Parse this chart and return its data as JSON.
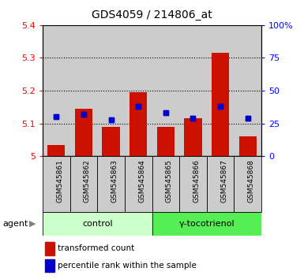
{
  "title": "GDS4059 / 214806_at",
  "samples": [
    "GSM545861",
    "GSM545862",
    "GSM545863",
    "GSM545864",
    "GSM545865",
    "GSM545866",
    "GSM545867",
    "GSM545868"
  ],
  "red_values": [
    5.035,
    5.145,
    5.09,
    5.195,
    5.09,
    5.115,
    5.315,
    5.06
  ],
  "blue_percentiles": [
    30,
    32,
    28,
    38,
    33,
    29,
    38,
    29
  ],
  "red_base": 5.0,
  "ylim_left": [
    5.0,
    5.4
  ],
  "ylim_right": [
    0,
    100
  ],
  "yticks_left": [
    5.0,
    5.1,
    5.2,
    5.3,
    5.4
  ],
  "ytick_labels_left": [
    "5",
    "5.1",
    "5.2",
    "5.3",
    "5.4"
  ],
  "yticks_right": [
    0,
    25,
    50,
    75,
    100
  ],
  "ytick_labels_right": [
    "0",
    "25",
    "50",
    "75",
    "100%"
  ],
  "groups": [
    {
      "label": "control",
      "indices": [
        0,
        1,
        2,
        3
      ],
      "color": "#ccffcc"
    },
    {
      "label": "γ-tocotrienol",
      "indices": [
        4,
        5,
        6,
        7
      ],
      "color": "#55ee55"
    }
  ],
  "agent_label": "agent",
  "bar_color": "#cc1100",
  "blue_color": "#0000cc",
  "sample_bg_color": "#cccccc",
  "bar_width": 0.65,
  "legend_red_label": "transformed count",
  "legend_blue_label": "percentile rank within the sample"
}
